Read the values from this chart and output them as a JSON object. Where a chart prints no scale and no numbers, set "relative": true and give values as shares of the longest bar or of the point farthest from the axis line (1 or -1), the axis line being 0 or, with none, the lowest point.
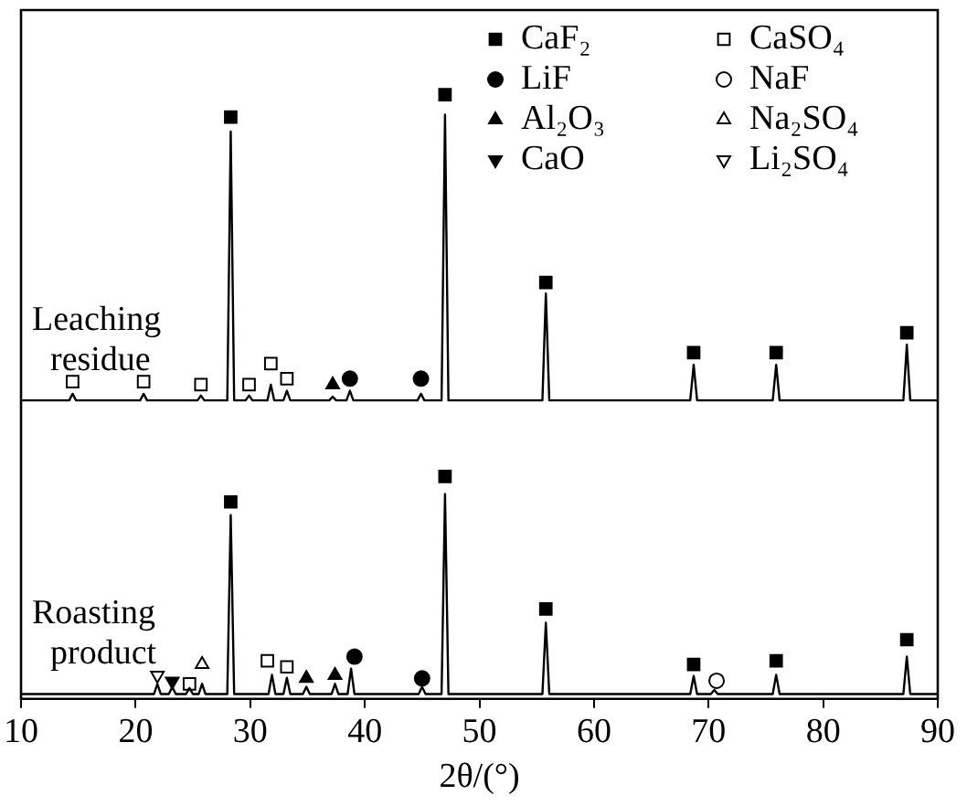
{
  "chart_data": {
    "type": "line",
    "relative": true,
    "xlabel": "2θ/(°)",
    "xlim": [
      10,
      90
    ],
    "xticks": [
      10,
      20,
      30,
      40,
      50,
      60,
      70,
      80,
      90
    ],
    "grid": false,
    "legend": "top right",
    "line_style": "solid",
    "series": [
      {
        "name": "Leaching residue",
        "color": "#000000",
        "marker": "none",
        "x": [
          10,
          14.2,
          14.5,
          14.8,
          20.4,
          20.7,
          21.0,
          25.4,
          25.7,
          26.0,
          28.0,
          28.3,
          28.6,
          29.6,
          29.9,
          30.2,
          31.5,
          31.8,
          32.1,
          32.9,
          33.2,
          33.5,
          36.9,
          37.2,
          37.5,
          38.4,
          38.7,
          39.0,
          44.6,
          44.9,
          45.2,
          46.7,
          47.0,
          47.3,
          55.5,
          55.8,
          56.1,
          68.4,
          68.7,
          69.0,
          75.6,
          75.9,
          76.2,
          87.0,
          87.3,
          87.6,
          90
        ],
        "values": [
          0.494,
          0.494,
          0.505,
          0.494,
          0.494,
          0.505,
          0.494,
          0.494,
          0.502,
          0.494,
          0.494,
          0.939,
          0.494,
          0.494,
          0.502,
          0.494,
          0.494,
          0.52,
          0.494,
          0.494,
          0.51,
          0.494,
          0.494,
          0.5,
          0.494,
          0.494,
          0.51,
          0.494,
          0.494,
          0.505,
          0.494,
          0.494,
          0.967,
          0.494,
          0.494,
          0.671,
          0.494,
          0.494,
          0.553,
          0.494,
          0.494,
          0.553,
          0.494,
          0.494,
          0.586,
          0.494,
          0.494
        ]
      },
      {
        "name": "Roasting product",
        "color": "#000000",
        "marker": "none",
        "x": [
          10,
          21.6,
          21.9,
          22.2,
          22.9,
          23.2,
          23.5,
          24.4,
          24.7,
          25.0,
          25.5,
          25.8,
          26.1,
          28.0,
          28.3,
          28.6,
          31.6,
          31.9,
          32.2,
          32.9,
          33.2,
          33.5,
          34.6,
          34.9,
          35.2,
          37.1,
          37.4,
          37.7,
          38.5,
          38.8,
          39.1,
          44.7,
          45.0,
          45.3,
          46.7,
          47.0,
          47.3,
          55.5,
          55.8,
          56.1,
          68.4,
          68.7,
          69.0,
          70.2,
          70.5,
          70.8,
          75.6,
          75.9,
          76.2,
          87.0,
          87.3,
          87.6,
          90
        ],
        "values": [
          0.008,
          0.008,
          0.025,
          0.008,
          0.008,
          0.02,
          0.008,
          0.008,
          0.018,
          0.008,
          0.008,
          0.025,
          0.008,
          0.008,
          0.304,
          0.008,
          0.008,
          0.04,
          0.008,
          0.008,
          0.035,
          0.008,
          0.008,
          0.02,
          0.008,
          0.008,
          0.025,
          0.008,
          0.008,
          0.05,
          0.008,
          0.008,
          0.02,
          0.008,
          0.008,
          0.339,
          0.008,
          0.008,
          0.126,
          0.008,
          0.008,
          0.038,
          0.008,
          0.008,
          0.015,
          0.008,
          0.008,
          0.04,
          0.008,
          0.008,
          0.07,
          0.008,
          0.008
        ]
      },
      {
        "name": "CaF₂",
        "type": "scatter",
        "color": "#000000",
        "marker": "square",
        "x": [
          28.3,
          47.0,
          55.8,
          68.7,
          75.9,
          87.3,
          28.3,
          47.0,
          55.8,
          68.7,
          75.9,
          87.3
        ],
        "values": [
          0.963,
          1,
          0.689,
          0.573,
          0.573,
          0.606,
          0.326,
          0.368,
          0.149,
          0.057,
          0.063,
          0.098
        ]
      },
      {
        "name": "LiF",
        "type": "scatter",
        "color": "#000000",
        "marker": "circle",
        "x": [
          38.7,
          44.9,
          39.1,
          45.0
        ],
        "values": [
          0.53,
          0.53,
          0.07,
          0.034
        ]
      },
      {
        "name": "Al₂O₃",
        "type": "scatter",
        "color": "#000000",
        "marker": "triangle",
        "x": [
          37.2,
          34.9,
          37.4
        ],
        "values": [
          0.52,
          0.034,
          0.039
        ]
      },
      {
        "name": "CaO",
        "type": "scatter",
        "color": "#000000",
        "marker": "triangle-down",
        "x": [
          23.2
        ],
        "values": [
          0.029
        ]
      },
      {
        "name": "CaSO₄",
        "type": "scatter",
        "color": "#ffffff",
        "marker": "square",
        "x": [
          14.5,
          20.7,
          25.7,
          29.9,
          31.8,
          33.2,
          24.7,
          31.5,
          33.2
        ],
        "values": [
          0.525,
          0.525,
          0.52,
          0.52,
          0.555,
          0.53,
          0.025,
          0.063,
          0.053
        ]
      },
      {
        "name": "NaF",
        "type": "scatter",
        "color": "#ffffff",
        "marker": "circle",
        "x": [
          70.7
        ],
        "values": [
          0.03
        ]
      },
      {
        "name": "Na₂SO₄",
        "type": "scatter",
        "color": "#ffffff",
        "marker": "triangle",
        "x": [
          25.8
        ],
        "values": [
          0.057
        ]
      },
      {
        "name": "Li₂SO₄",
        "type": "scatter",
        "color": "#ffffff",
        "marker": "triangle-down",
        "x": [
          21.9
        ],
        "values": [
          0.039
        ]
      }
    ]
  }
}
